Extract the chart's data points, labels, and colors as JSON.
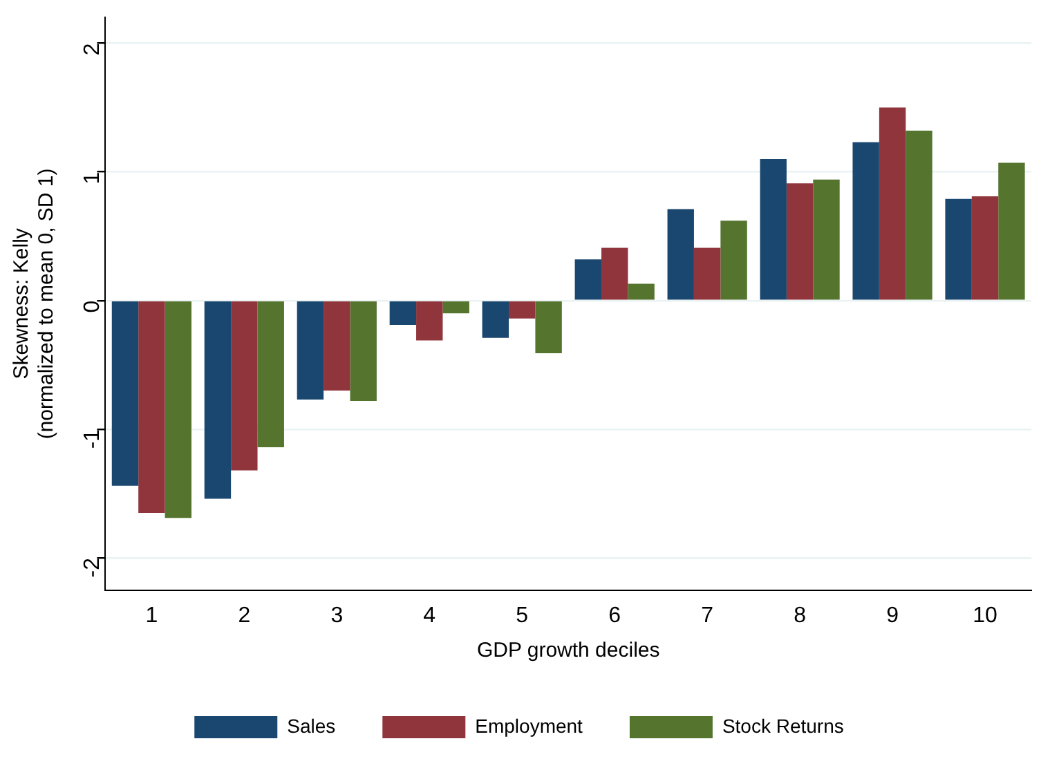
{
  "chart_data": {
    "type": "bar",
    "xlabel": "GDP growth deciles",
    "ylabel": "Skewness: Kelly\n(normalized to mean 0, SD 1)",
    "categories": [
      "1",
      "2",
      "3",
      "4",
      "5",
      "6",
      "7",
      "8",
      "9",
      "10"
    ],
    "series": [
      {
        "name": "Sales",
        "color": "#1a476f",
        "values": [
          -1.44,
          -1.54,
          -0.77,
          -0.19,
          -0.29,
          0.32,
          0.71,
          1.1,
          1.23,
          0.79
        ]
      },
      {
        "name": "Employment",
        "color": "#90353b",
        "values": [
          -1.65,
          -1.32,
          -0.7,
          -0.31,
          -0.14,
          0.41,
          0.41,
          0.91,
          1.5,
          0.81
        ]
      },
      {
        "name": "Stock Returns",
        "color": "#55752f",
        "values": [
          -1.69,
          -1.14,
          -0.78,
          -0.1,
          -0.41,
          0.13,
          0.62,
          0.94,
          1.32,
          1.07
        ]
      }
    ],
    "ylim": [
      -2.25,
      2.2
    ],
    "yticks": [
      -2,
      -1,
      0,
      1,
      2
    ],
    "grid": "y",
    "legend": "bottom"
  }
}
